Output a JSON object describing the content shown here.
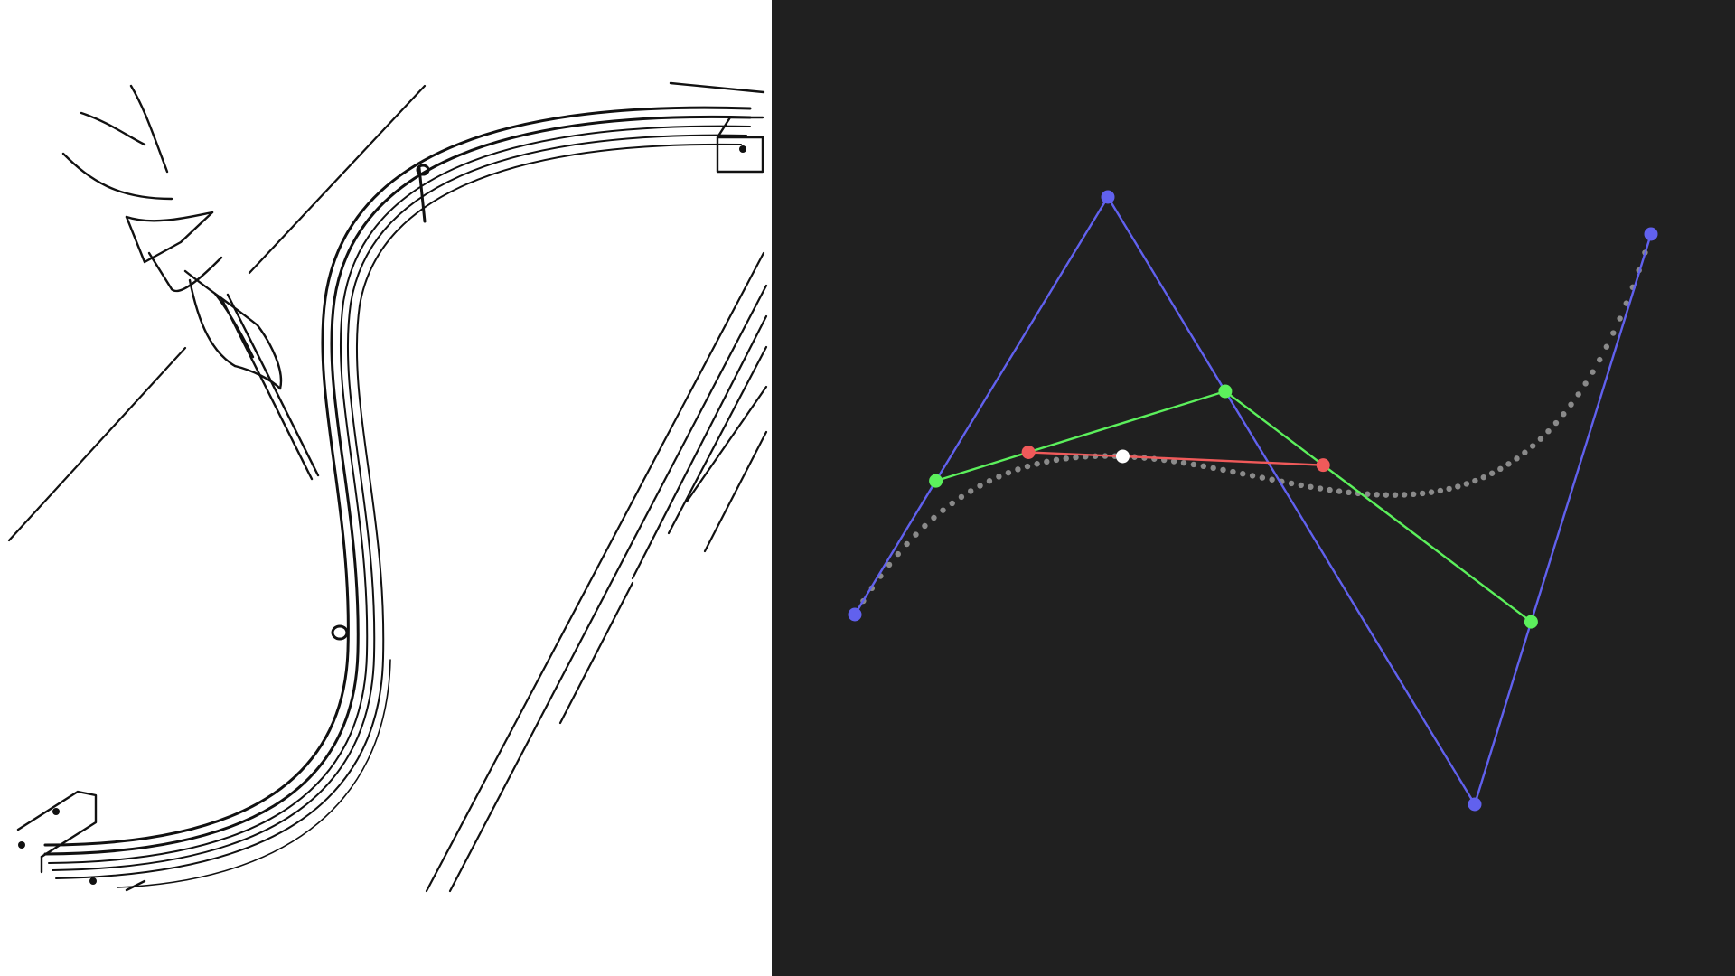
{
  "illustration": {
    "subject": "drafting-spline-illustration"
  },
  "bezier_diagram": {
    "colors": {
      "background": "#202020",
      "control_polygon": "#6161ee",
      "level1": "#5cf05c",
      "level2": "#f05a5a",
      "point_on_curve": "#ffffff",
      "curve_dots": "#8a8a8a"
    },
    "t": 0.32
  }
}
